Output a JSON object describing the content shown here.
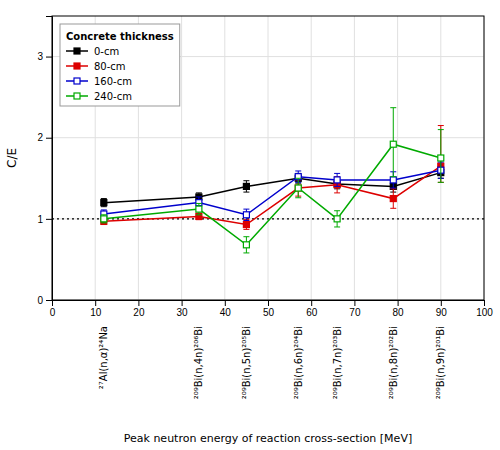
{
  "chart_data": {
    "type": "line",
    "x_label": "Peak neutron energy of reaction cross-section [MeV]",
    "y_label": "C/E",
    "legend_title": "Concrete thickness",
    "legend": "upper left",
    "grid": true,
    "x": [
      12,
      34,
      45,
      57,
      66,
      79,
      90
    ],
    "series": [
      {
        "name": "0-cm",
        "color": "#000000",
        "marker": "square",
        "values": [
          1.2,
          1.27,
          1.4,
          1.5,
          1.43,
          1.4,
          1.57
        ],
        "error_lo": [
          0.05,
          0.05,
          0.07,
          0.06,
          0.06,
          0.07,
          0.07
        ],
        "error_hi": [
          0.05,
          0.05,
          0.07,
          0.06,
          0.06,
          0.07,
          0.07
        ]
      },
      {
        "name": "80-cm",
        "color": "#dd0000",
        "marker": "square",
        "values": [
          0.97,
          1.03,
          0.93,
          1.38,
          1.42,
          1.25,
          1.65
        ],
        "error_lo": [
          0.04,
          0.04,
          0.06,
          0.1,
          0.1,
          0.12,
          0.2
        ],
        "error_hi": [
          0.04,
          0.04,
          0.06,
          0.1,
          0.1,
          0.12,
          0.5
        ]
      },
      {
        "name": "160-cm",
        "color": "#0000cc",
        "marker": "square-open",
        "values": [
          1.06,
          1.2,
          1.05,
          1.52,
          1.48,
          1.48,
          1.6
        ],
        "error_lo": [
          0.05,
          0.07,
          0.07,
          0.07,
          0.08,
          0.1,
          0.1
        ],
        "error_hi": [
          0.05,
          0.07,
          0.07,
          0.07,
          0.08,
          0.1,
          0.1
        ]
      },
      {
        "name": "240-cm",
        "color": "#00aa00",
        "marker": "square-open",
        "values": [
          1.0,
          1.12,
          0.68,
          1.38,
          1.0,
          1.92,
          1.75
        ],
        "error_lo": [
          0.05,
          0.07,
          0.1,
          0.12,
          0.1,
          0.4,
          0.3
        ],
        "error_hi": [
          0.05,
          0.07,
          0.1,
          0.12,
          0.1,
          0.45,
          0.35
        ]
      }
    ],
    "hline": 1.0,
    "xlim": [
      0,
      100
    ],
    "ylim": [
      0,
      3.5
    ],
    "xticks": [
      0,
      10,
      20,
      30,
      40,
      50,
      60,
      70,
      80,
      90,
      100
    ],
    "yticks": [
      0,
      1,
      2,
      3
    ],
    "annotations": [
      {
        "x": 12,
        "text": "²⁷Al(n,α)²⁴Na"
      },
      {
        "x": 34,
        "text": "²⁰⁹Bi(n,4n)²⁰⁶Bi"
      },
      {
        "x": 45,
        "text": "²⁰⁹Bi(n,5n)²⁰⁵Bi"
      },
      {
        "x": 57,
        "text": "²⁰⁹Bi(n,6n)²⁰⁴Bi"
      },
      {
        "x": 66,
        "text": "²⁰⁹Bi(n,7n)²⁰³Bi"
      },
      {
        "x": 79,
        "text": "²⁰⁹Bi(n,8n)²⁰²Bi"
      },
      {
        "x": 90,
        "text": "²⁰⁹Bi(n,9n)²⁰¹Bi"
      }
    ]
  }
}
